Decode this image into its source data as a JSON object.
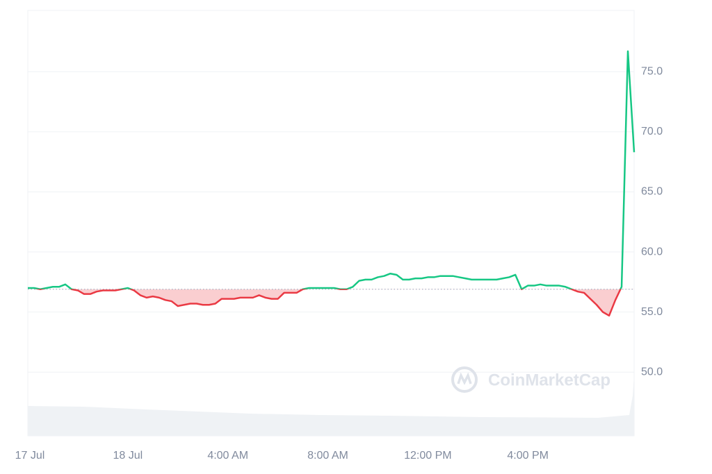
{
  "chart_data": {
    "type": "line",
    "categories": [
      "17 Jul",
      null,
      null,
      null,
      null,
      null,
      null,
      null,
      null,
      null,
      null,
      null,
      null,
      null,
      null,
      null,
      "18 Jul",
      null,
      null,
      null,
      null,
      null,
      null,
      null,
      null,
      null,
      null,
      null,
      null,
      null,
      null,
      null,
      "4:00 AM",
      null,
      null,
      null,
      null,
      null,
      null,
      null,
      null,
      null,
      null,
      null,
      null,
      null,
      null,
      null,
      "8:00 AM",
      null,
      null,
      null,
      null,
      null,
      null,
      null,
      null,
      null,
      null,
      null,
      null,
      null,
      null,
      null,
      "12:00 PM",
      null,
      null,
      null,
      null,
      null,
      null,
      null,
      null,
      null,
      null,
      null,
      null,
      null,
      null,
      null,
      "4:00 PM",
      null,
      null,
      null,
      null,
      null,
      null,
      null,
      null,
      null,
      null,
      null,
      null,
      null,
      null,
      null,
      null,
      null
    ],
    "values": [
      57.0,
      57.0,
      56.9,
      57.0,
      57.1,
      57.1,
      57.3,
      56.9,
      56.8,
      56.5,
      56.5,
      56.7,
      56.8,
      56.8,
      56.8,
      56.9,
      57.0,
      56.8,
      56.4,
      56.2,
      56.3,
      56.2,
      56.0,
      55.9,
      55.5,
      55.6,
      55.7,
      55.7,
      55.6,
      55.6,
      55.7,
      56.1,
      56.1,
      56.1,
      56.2,
      56.2,
      56.2,
      56.4,
      56.2,
      56.1,
      56.1,
      56.6,
      56.6,
      56.6,
      56.9,
      57.0,
      57.0,
      57.0,
      57.0,
      57.0,
      56.9,
      56.9,
      57.1,
      57.6,
      57.7,
      57.7,
      57.9,
      58.0,
      58.2,
      58.1,
      57.7,
      57.7,
      57.8,
      57.8,
      57.9,
      57.9,
      58.0,
      58.0,
      58.0,
      57.9,
      57.8,
      57.7,
      57.7,
      57.7,
      57.7,
      57.7,
      57.8,
      57.9,
      58.1,
      56.9,
      57.2,
      57.2,
      57.3,
      57.2,
      57.2,
      57.2,
      57.1,
      56.9,
      56.7,
      56.6,
      56.1,
      55.6,
      55.0,
      54.7,
      56.0,
      57.1,
      76.7,
      68.3
    ],
    "baseline": 56.9,
    "up_color": "#16c784",
    "down_color": "#ea3943",
    "ylim": [
      44.7,
      80.1
    ],
    "yticks": [
      {
        "value": 50,
        "label": "50.0"
      },
      {
        "value": 55,
        "label": "55.0"
      },
      {
        "value": 60,
        "label": "60.0"
      },
      {
        "value": 65,
        "label": "65.0"
      },
      {
        "value": 70,
        "label": "70.0"
      },
      {
        "value": 75,
        "label": "75.0"
      }
    ],
    "grid": true,
    "watermark": "CoinMarketCap"
  }
}
